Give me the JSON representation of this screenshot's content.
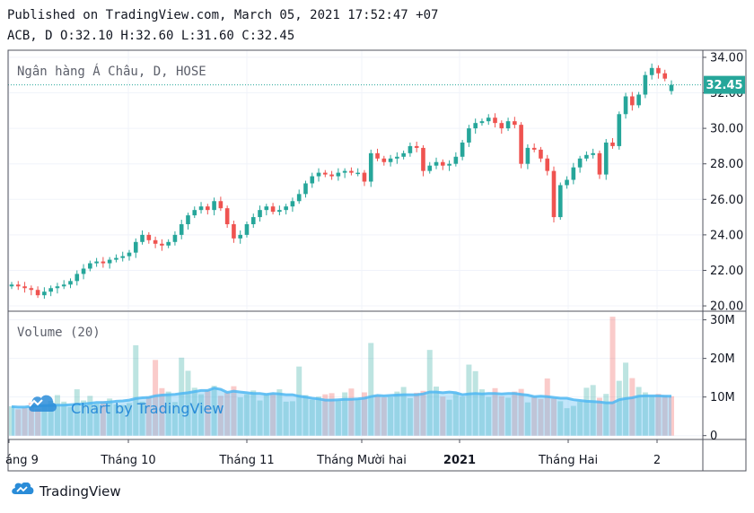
{
  "header": {
    "published": "Published on TradingView.com, March 05, 2021 17:52:47 +07",
    "ohlc": "ACB, D O:32.10 H:32.60 L:31.60 C:32.45"
  },
  "price_pane": {
    "legend": "Ngân hàng Á Châu, D, HOSE",
    "last_price_label": "32.45",
    "y_ticks": [
      "34.00",
      "32.00",
      "30.00",
      "28.00",
      "26.00",
      "24.00",
      "22.00",
      "20.00"
    ]
  },
  "volume_pane": {
    "legend": "Volume (20)",
    "y_ticks": [
      "30M",
      "20M",
      "10M",
      "0"
    ]
  },
  "x_axis": {
    "ticks": [
      "áng 9",
      "Tháng 10",
      "Tháng 11",
      "Tháng Mười hai",
      "2021",
      "Tháng Hai",
      "2"
    ]
  },
  "watermark": {
    "text": "Chart by TradingView"
  },
  "footer": {
    "brand": "TradingView"
  },
  "colors": {
    "up": "#26a69a",
    "down": "#ef5350",
    "ma": "#4fb7f2",
    "accent": "#2a8cd8"
  },
  "chart_data": {
    "type": "candlestick",
    "symbol": "ACB",
    "timeframe": "D",
    "exchange": "HOSE",
    "ylim": [
      19.7,
      34.4
    ],
    "volume_ylim": [
      -1,
      32
    ],
    "volume_ma_length": 20,
    "last_close": 32.45,
    "closes": [
      21.2,
      21.1,
      21.0,
      20.9,
      20.6,
      20.8,
      21.0,
      21.1,
      21.2,
      21.4,
      21.8,
      22.1,
      22.4,
      22.5,
      22.4,
      22.6,
      22.7,
      22.8,
      23.0,
      23.6,
      24.0,
      23.7,
      23.5,
      23.4,
      23.6,
      24.0,
      24.6,
      25.1,
      25.4,
      25.6,
      25.4,
      25.9,
      25.5,
      24.6,
      23.8,
      24.0,
      24.6,
      25.0,
      25.4,
      25.6,
      25.3,
      25.4,
      25.6,
      25.9,
      26.3,
      26.9,
      27.3,
      27.5,
      27.4,
      27.3,
      27.5,
      27.6,
      27.5,
      27.5,
      27.0,
      28.6,
      28.3,
      28.1,
      28.3,
      28.4,
      28.6,
      29.0,
      28.9,
      27.6,
      27.9,
      28.1,
      27.9,
      28.0,
      28.4,
      29.2,
      30.0,
      30.3,
      30.4,
      30.6,
      30.3,
      30.0,
      30.4,
      30.2,
      28.0,
      28.9,
      28.8,
      28.3,
      27.6,
      25.0,
      26.8,
      27.1,
      27.8,
      28.3,
      28.5,
      28.6,
      27.4,
      29.2,
      29.0,
      30.8,
      31.8,
      31.3,
      31.9,
      33.0,
      33.4,
      33.1,
      32.8,
      32.45
    ],
    "volumes": [
      7.6,
      6.8,
      7.2,
      8.5,
      6.9,
      7.8,
      9.0,
      10.5,
      8.8,
      7.4,
      12.0,
      9.1,
      10.3,
      8.2,
      8.9,
      9.6,
      8.1,
      7.9,
      8.4,
      23.4,
      8.8,
      10.1,
      19.6,
      12.3,
      11.4,
      8.7,
      20.2,
      16.8,
      12.4,
      10.7,
      11.8,
      12.9,
      10.3,
      11.1,
      12.8,
      9.9,
      10.7,
      11.7,
      9.1,
      10.6,
      10.9,
      12.0,
      8.8,
      8.9,
      17.9,
      10.5,
      9.3,
      10.1,
      10.7,
      11.0,
      9.1,
      11.2,
      12.2,
      9.5,
      11.2,
      24.0,
      10.4,
      9.9,
      10.0,
      11.4,
      12.6,
      9.7,
      11.1,
      11.6,
      22.2,
      12.7,
      10.1,
      9.3,
      11.0,
      10.1,
      18.4,
      16.7,
      12.0,
      10.0,
      12.3,
      10.2,
      9.8,
      11.4,
      12.1,
      8.6,
      10.1,
      9.5,
      14.8,
      9.6,
      8.9,
      7.1,
      7.7,
      8.8,
      12.4,
      13.1,
      9.8,
      10.8,
      30.8,
      14.2,
      18.9,
      14.9,
      12.6,
      11.2,
      10.2,
      10.8,
      10.4,
      10.2
    ],
    "volume_ma": [
      7.5,
      7.4,
      7.4,
      7.6,
      7.7,
      7.8,
      7.8,
      7.9,
      7.9,
      8.0,
      8.1,
      8.2,
      8.4,
      8.6,
      8.6,
      8.7,
      8.9,
      9.0,
      9.2,
      9.6,
      9.8,
      9.9,
      10.3,
      10.5,
      10.6,
      10.7,
      10.9,
      11.1,
      11.4,
      11.7,
      11.7,
      12.3,
      12.0,
      11.2,
      11.5,
      11.3,
      11.1,
      10.9,
      10.9,
      10.7,
      10.9,
      10.8,
      10.6,
      10.6,
      10.2,
      10.0,
      9.7,
      9.5,
      9.2,
      9.2,
      9.3,
      9.4,
      9.4,
      9.5,
      9.7,
      10.1,
      10.4,
      10.3,
      10.4,
      10.5,
      10.6,
      10.6,
      10.6,
      10.8,
      11.3,
      11.3,
      11.1,
      11.3,
      11.1,
      10.6,
      10.8,
      10.9,
      10.8,
      10.9,
      10.9,
      10.8,
      10.9,
      10.9,
      10.7,
      10.5,
      10.1,
      10.2,
      10.1,
      9.9,
      9.7,
      9.7,
      9.3,
      9.1,
      8.9,
      8.8,
      8.7,
      8.5,
      8.5,
      9.3,
      9.6,
      9.8,
      10.2,
      10.3,
      10.3,
      10.3,
      10.2,
      10.2
    ]
  }
}
